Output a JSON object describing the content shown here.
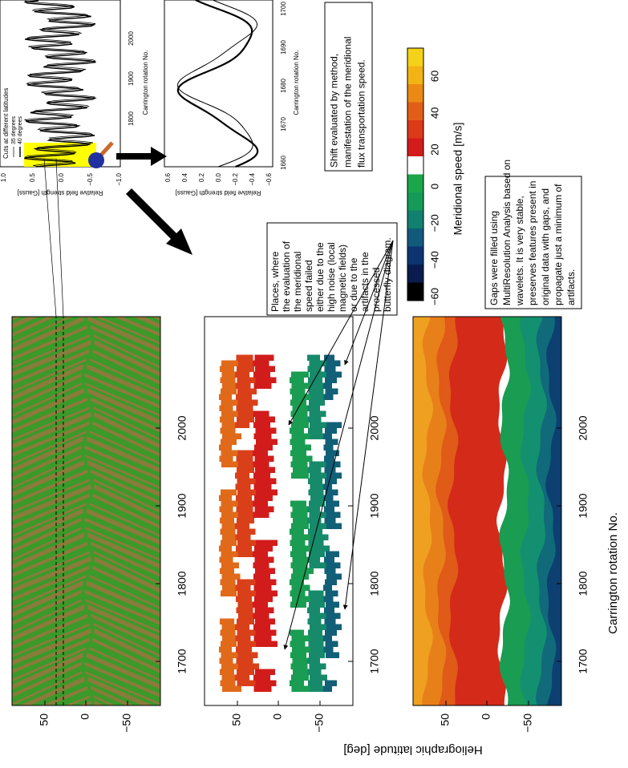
{
  "figure": {
    "latitude_axis_label": "Heliographic latitude [deg]",
    "rotation_axis_label": "Carrington rotation No.",
    "latitude_ticks": [
      "50",
      "0",
      "−50"
    ],
    "rotation_ticks": [
      "1700",
      "1800",
      "1900",
      "2000"
    ]
  },
  "inset_cuts": {
    "legend_title": "Cuts at different latitudes",
    "legend": [
      "35 degrees",
      "40 degrees"
    ],
    "y_label": "Relative field strength [Gauss]",
    "y_ticks": [
      "1.0",
      "0.5",
      "0.0",
      "−0.5",
      "−1.0"
    ],
    "x_label": "Carrington rotation No.",
    "x_ticks": [
      "1800",
      "1900",
      "2000"
    ]
  },
  "inset_shift": {
    "y_label": "Relative field strength [Gauss]",
    "y_ticks": [
      "0.6",
      "0.4",
      "0.2",
      "0.0",
      "−0.2",
      "−0.4",
      "−0.6"
    ],
    "x_label": "Carrington rotation No.",
    "x_ticks": [
      "1660",
      "1670",
      "1680",
      "1690",
      "1700"
    ]
  },
  "notes": {
    "shift": [
      "Shift evaluated by method,",
      "manifestation of the meridional",
      "flux transportation speed."
    ],
    "failed": [
      "Places, where",
      "the evaluation of",
      "the meridional",
      "speed failed",
      "either due to the",
      "high noise (local",
      "magnetic fields)",
      "or due to the",
      "artifacts in the",
      "processed",
      "butterfly diagram."
    ],
    "gaps": [
      "Gaps were filled using",
      "MultiResolution Analysis based on",
      "wavelets. It is very stable,",
      "preserves features present in",
      "original data with gaps, and",
      "propagate just a minimum of",
      "artifacts."
    ]
  },
  "colorbar": {
    "label": "Meridional speed [m/s]",
    "ticks": [
      "60",
      "40",
      "20",
      "0",
      "−20",
      "−40",
      "−60"
    ]
  }
}
